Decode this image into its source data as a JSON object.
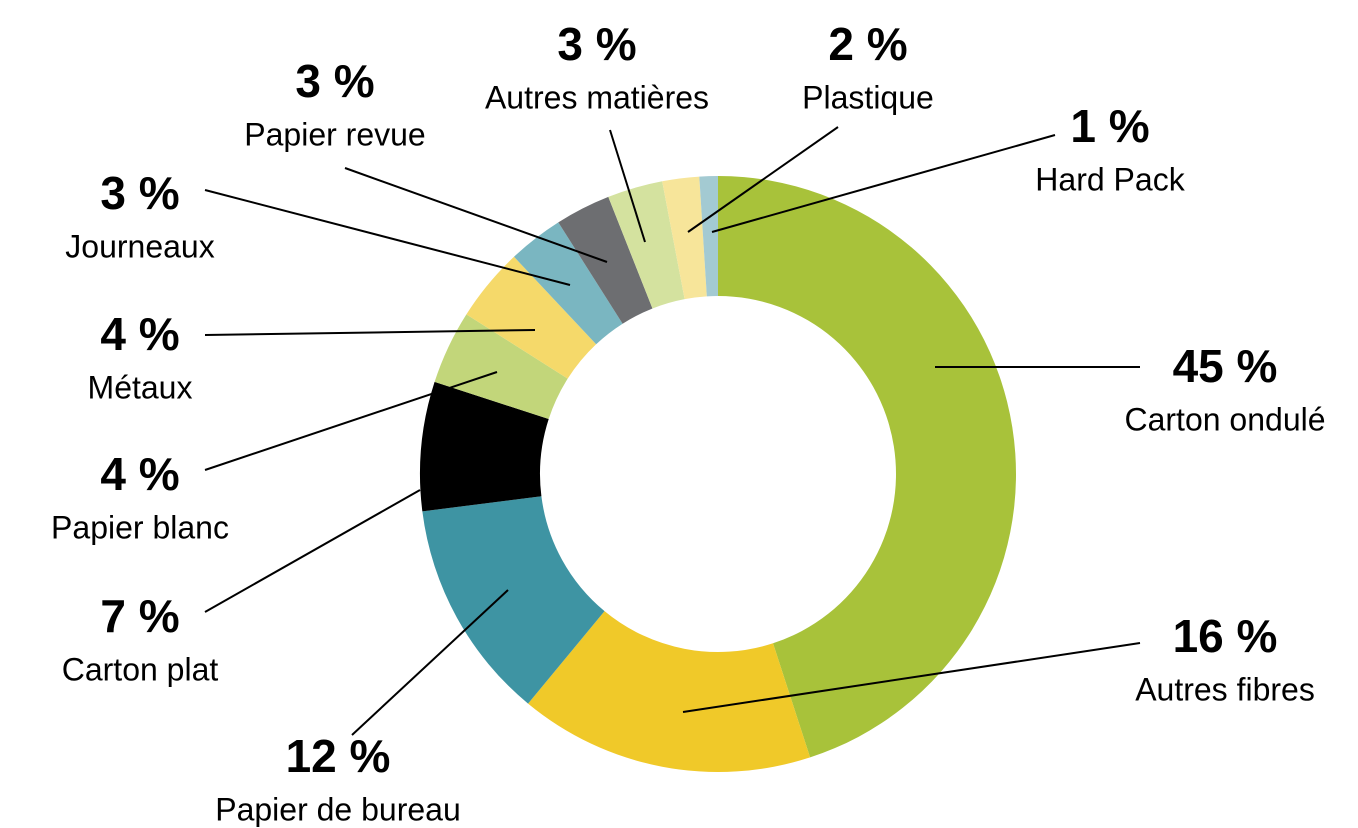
{
  "chart_data": {
    "type": "pie",
    "categories": [
      "Carton ondulé",
      "Autres fibres",
      "Papier de bureau",
      "Carton plat",
      "Papier blanc",
      "Métaux",
      "Journeaux",
      "Papier revue",
      "Autres matières",
      "Plastique",
      "Hard Pack"
    ],
    "values": [
      45,
      16,
      12,
      7,
      4,
      4,
      3,
      3,
      3,
      2,
      1
    ],
    "value_labels": [
      "45 %",
      "16 %",
      "12 %",
      "7 %",
      "4 %",
      "4 %",
      "3 %",
      "3 %",
      "3 %",
      "2 %",
      "1 %"
    ],
    "colors": [
      "#a8c23a",
      "#f0c929",
      "#3e94a3",
      "#000000",
      "#c2d67a",
      "#f5d96a",
      "#7ab6c1",
      "#6d6e71",
      "#d4e29f",
      "#f7e59a",
      "#a3cad2"
    ],
    "donut": true
  }
}
